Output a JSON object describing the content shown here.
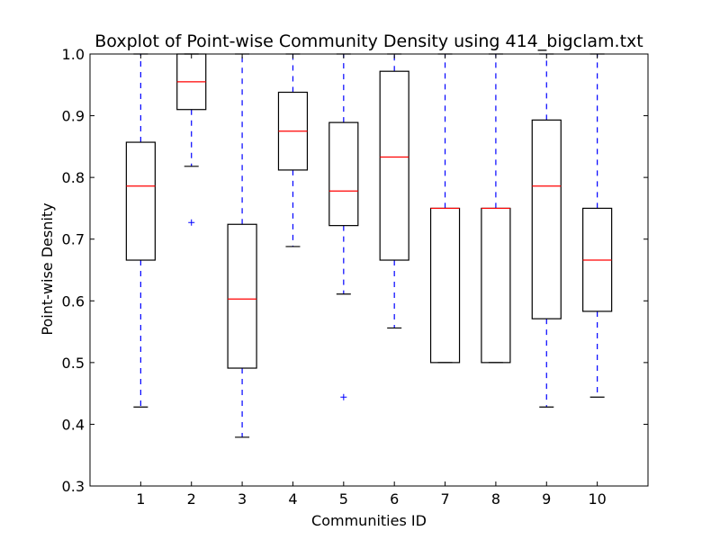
{
  "chart_data": {
    "type": "boxplot",
    "title": "Boxplot of Point-wise Community Density using 414_bigclam.txt",
    "xlabel": "Communities ID",
    "ylabel": "Point-wise Desnity",
    "ylim": [
      0.3,
      1.0
    ],
    "yticks": [
      "0.3",
      "0.4",
      "0.5",
      "0.6",
      "0.7",
      "0.8",
      "0.9",
      "1.0"
    ],
    "categories": [
      "1",
      "2",
      "3",
      "4",
      "5",
      "6",
      "7",
      "8",
      "9",
      "10"
    ],
    "grid": false,
    "boxes": [
      {
        "id": "1",
        "whislo": 0.428,
        "q1": 0.666,
        "med": 0.786,
        "q3": 0.857,
        "whishi": 1.0,
        "fliers": []
      },
      {
        "id": "2",
        "whislo": 0.818,
        "q1": 0.91,
        "med": 0.955,
        "q3": 1.0,
        "whishi": 1.0,
        "fliers": [
          0.727
        ]
      },
      {
        "id": "3",
        "whislo": 0.379,
        "q1": 0.491,
        "med": 0.603,
        "q3": 0.724,
        "whishi": 1.0,
        "fliers": []
      },
      {
        "id": "4",
        "whislo": 0.688,
        "q1": 0.812,
        "med": 0.875,
        "q3": 0.938,
        "whishi": 1.0,
        "fliers": []
      },
      {
        "id": "5",
        "whislo": 0.611,
        "q1": 0.722,
        "med": 0.778,
        "q3": 0.889,
        "whishi": 1.0,
        "fliers": [
          0.444
        ]
      },
      {
        "id": "6",
        "whislo": 0.556,
        "q1": 0.666,
        "med": 0.833,
        "q3": 0.972,
        "whishi": 1.0,
        "fliers": []
      },
      {
        "id": "7",
        "whislo": 0.5,
        "q1": 0.5,
        "med": 0.75,
        "q3": 0.75,
        "whishi": 1.0,
        "fliers": []
      },
      {
        "id": "8",
        "whislo": 0.5,
        "q1": 0.5,
        "med": 0.75,
        "q3": 0.75,
        "whishi": 1.0,
        "fliers": []
      },
      {
        "id": "9",
        "whislo": 0.428,
        "q1": 0.571,
        "med": 0.786,
        "q3": 0.893,
        "whishi": 1.0,
        "fliers": []
      },
      {
        "id": "10",
        "whislo": 0.444,
        "q1": 0.583,
        "med": 0.666,
        "q3": 0.75,
        "whishi": 1.0,
        "fliers": []
      }
    ],
    "colors": {
      "box": "#000000",
      "median": "#ff0000",
      "whisker": "#0000ff",
      "flier": "#0000ff"
    }
  }
}
